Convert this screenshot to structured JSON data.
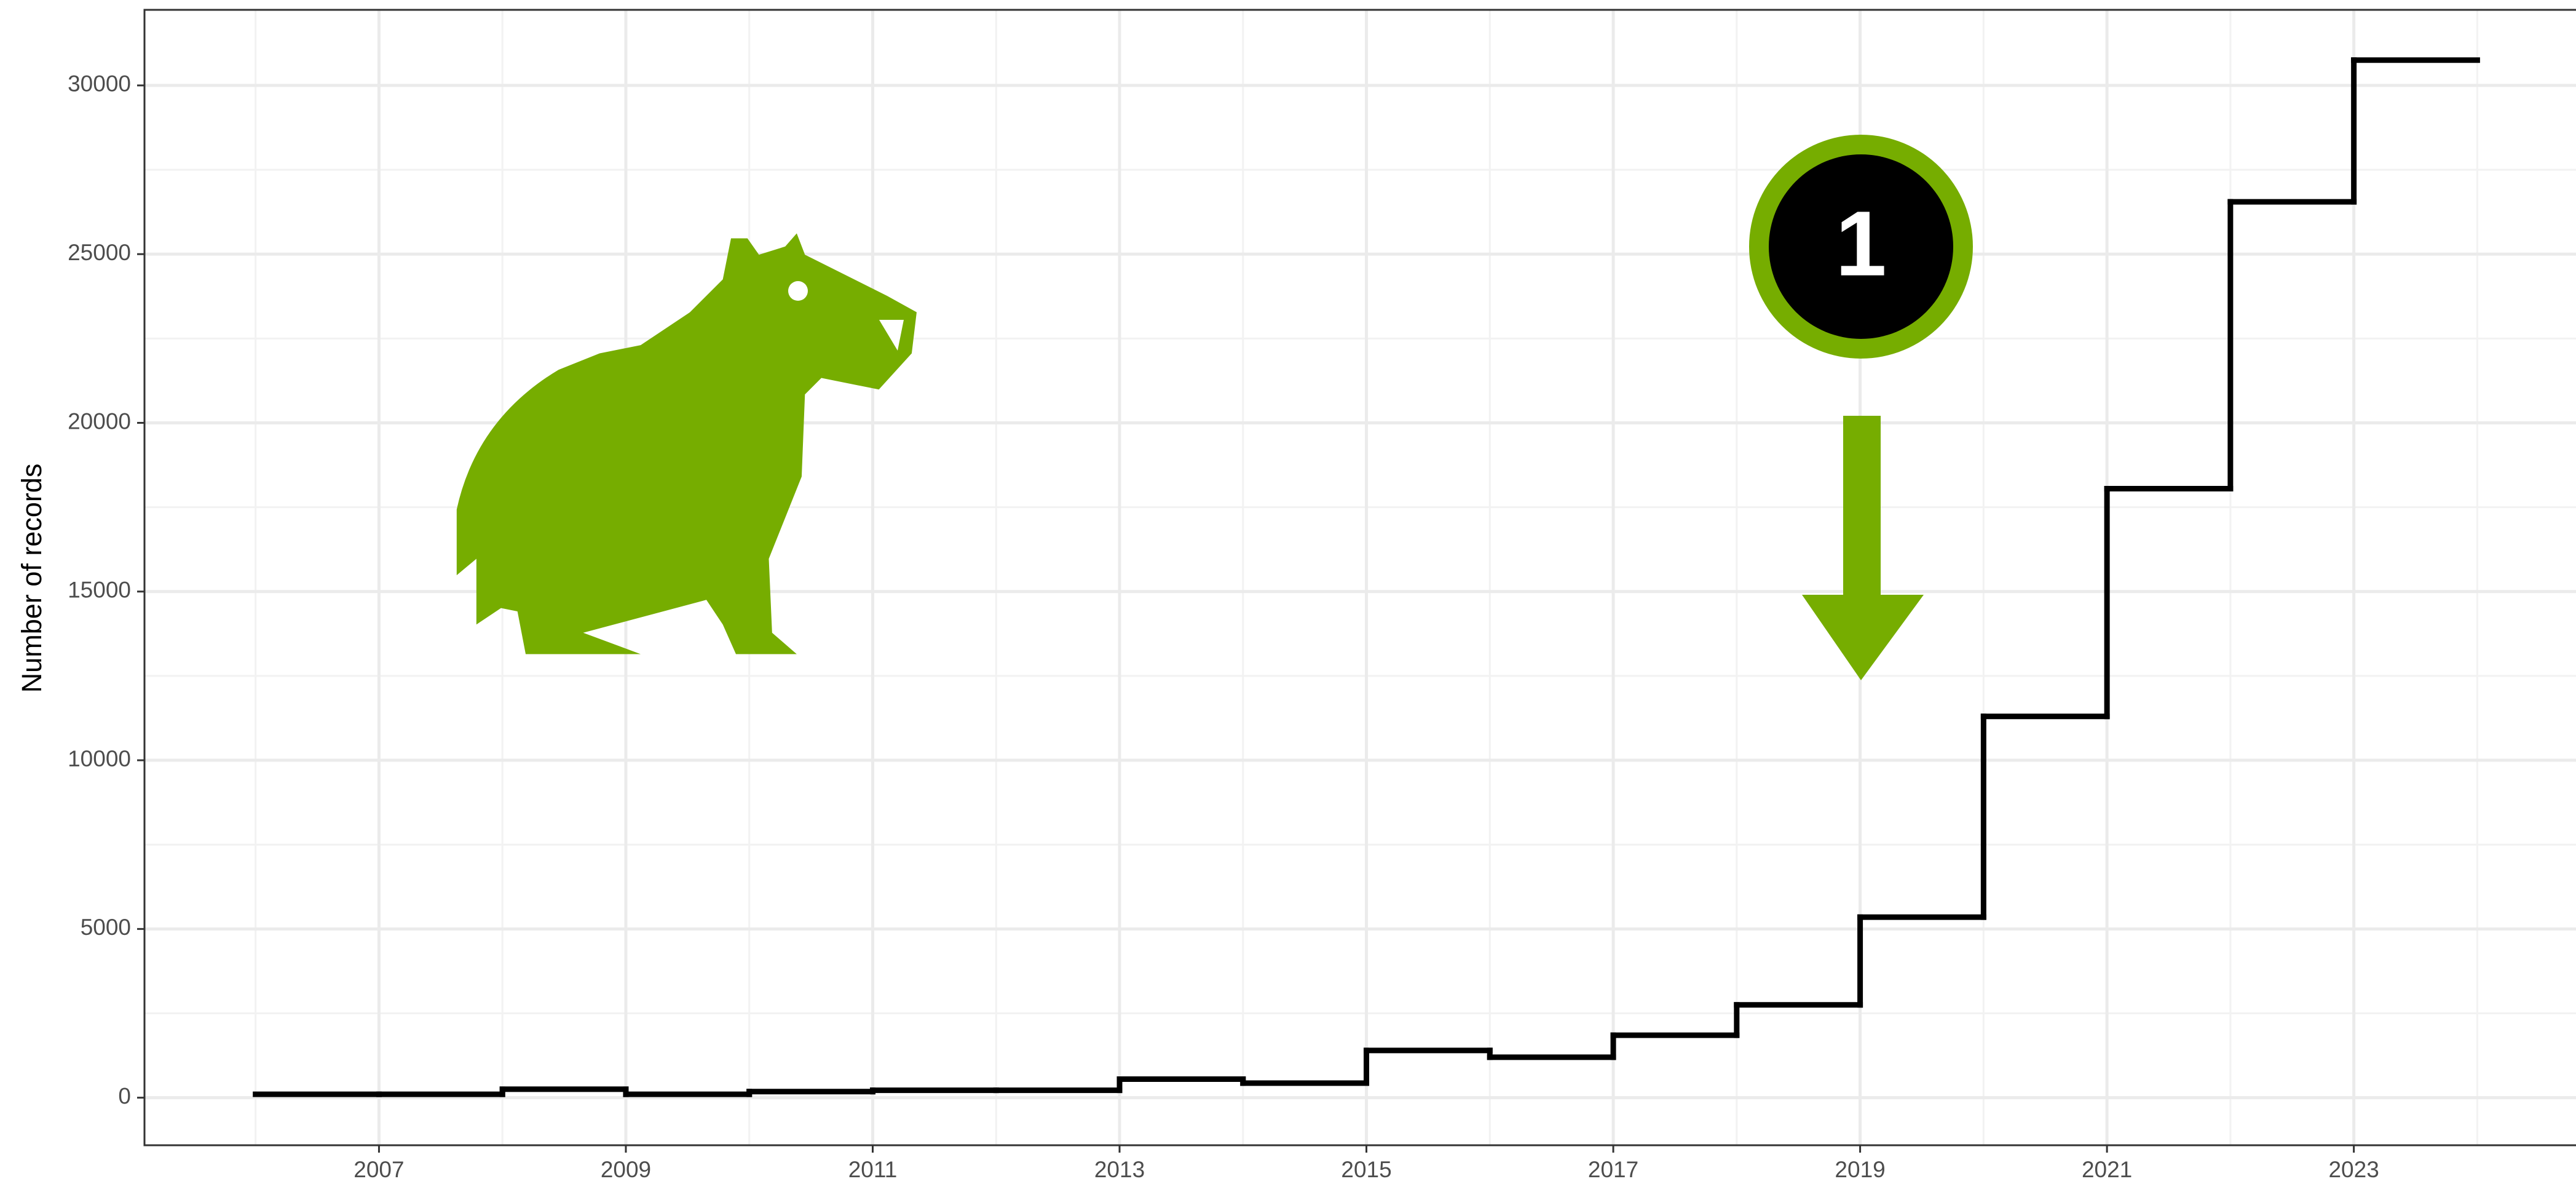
{
  "chart_data": {
    "type": "step",
    "y_label": "Number of records",
    "badge": "1",
    "x": [
      2006,
      2007,
      2008,
      2009,
      2010,
      2011,
      2012,
      2013,
      2014,
      2015,
      2016,
      2017,
      2018,
      2019,
      2020,
      2021,
      2022,
      2023,
      2024
    ],
    "series": [
      {
        "color": "#000000",
        "values": [
          100,
          100,
          250,
          100,
          180,
          220,
          220,
          550,
          430,
          1400,
          1200,
          1850,
          2750,
          5350,
          11300,
          18050,
          26550,
          30750,
          30750
        ]
      }
    ],
    "xlim": [
      2005.1,
      2024.8
    ],
    "xticks": [
      2007,
      2009,
      2011,
      2013,
      2015,
      2017,
      2019,
      2021,
      2023
    ],
    "x_minor_ticks": [
      2006,
      2008,
      2010,
      2012,
      2014,
      2016,
      2018,
      2020,
      2022,
      2024
    ],
    "ylim": [
      -1410,
      32240
    ],
    "yticks": [
      0,
      5000,
      10000,
      15000,
      20000,
      25000,
      30000
    ],
    "y_minor_ticks": [
      2500,
      7500,
      12500,
      17500,
      22500,
      27500
    ],
    "grid": true,
    "accent_color": "#76ad00"
  }
}
